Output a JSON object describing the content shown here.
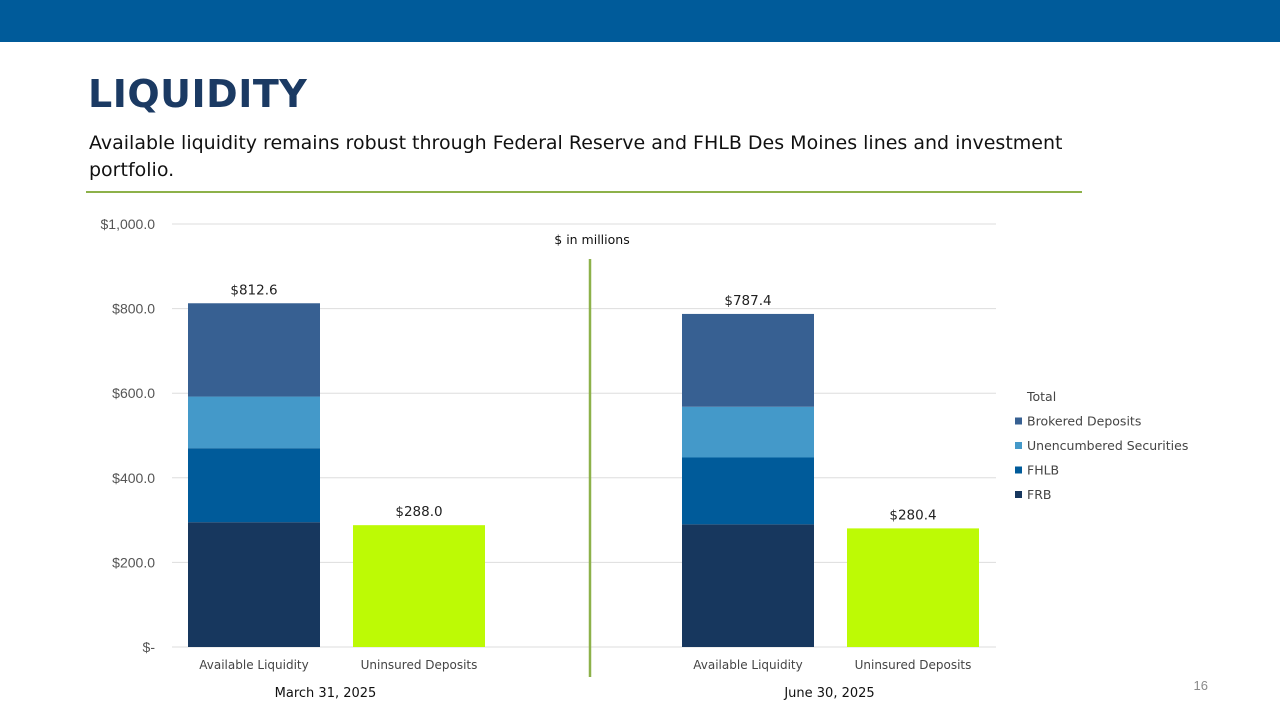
{
  "header": {
    "title": "LIQUIDITY",
    "subtitle": "Available liquidity remains robust through Federal Reserve and FHLB Des Moines lines and investment portfolio."
  },
  "page_number": "16",
  "colors": {
    "top_bar": "#005b9a",
    "title": "#1b3a63",
    "rule": "#8db14a",
    "divider": "#8db14a",
    "gridline": "#dddddd"
  },
  "chart_data": {
    "type": "bar",
    "stacked": true,
    "units_label": "$ in millions",
    "ylim": [
      0,
      1000
    ],
    "yticks": [
      0,
      200,
      400,
      600,
      800,
      1000
    ],
    "ytick_labels": [
      "$-",
      "$200.0",
      "$400.0",
      "$600.0",
      "$800.0",
      "$1,000.0"
    ],
    "grid": true,
    "legend_position": "right",
    "legend_title": "Total",
    "groups": [
      {
        "label": "March 31, 2025",
        "bars": [
          {
            "category": "Available Liquidity",
            "total_label": "$812.6",
            "segments": [
              {
                "series": "FRB",
                "value": 295
              },
              {
                "series": "FHLB",
                "value": 175
              },
              {
                "series": "Unencumbered Securities",
                "value": 122
              },
              {
                "series": "Brokered Deposits",
                "value": 220.6
              }
            ]
          },
          {
            "category": "Uninsured Deposits",
            "total_label": "$288.0",
            "segments": [
              {
                "series": "Uninsured Deposits",
                "value": 288.0
              }
            ]
          }
        ]
      },
      {
        "label": "June 30, 2025",
        "bars": [
          {
            "category": "Available Liquidity",
            "total_label": "$787.4",
            "segments": [
              {
                "series": "FRB",
                "value": 290
              },
              {
                "series": "FHLB",
                "value": 158
              },
              {
                "series": "Unencumbered Securities",
                "value": 120
              },
              {
                "series": "Brokered Deposits",
                "value": 219.4
              }
            ]
          },
          {
            "category": "Uninsured Deposits",
            "total_label": "$280.4",
            "segments": [
              {
                "series": "Uninsured Deposits",
                "value": 280.4
              }
            ]
          }
        ]
      }
    ],
    "series_colors": {
      "FRB": "#17375e",
      "FHLB": "#005b9a",
      "Unencumbered Securities": "#4499c9",
      "Brokered Deposits": "#376092",
      "Uninsured Deposits": "#bdfa05"
    },
    "legend": [
      "Brokered Deposits",
      "Unencumbered Securities",
      "FHLB",
      "FRB"
    ]
  }
}
